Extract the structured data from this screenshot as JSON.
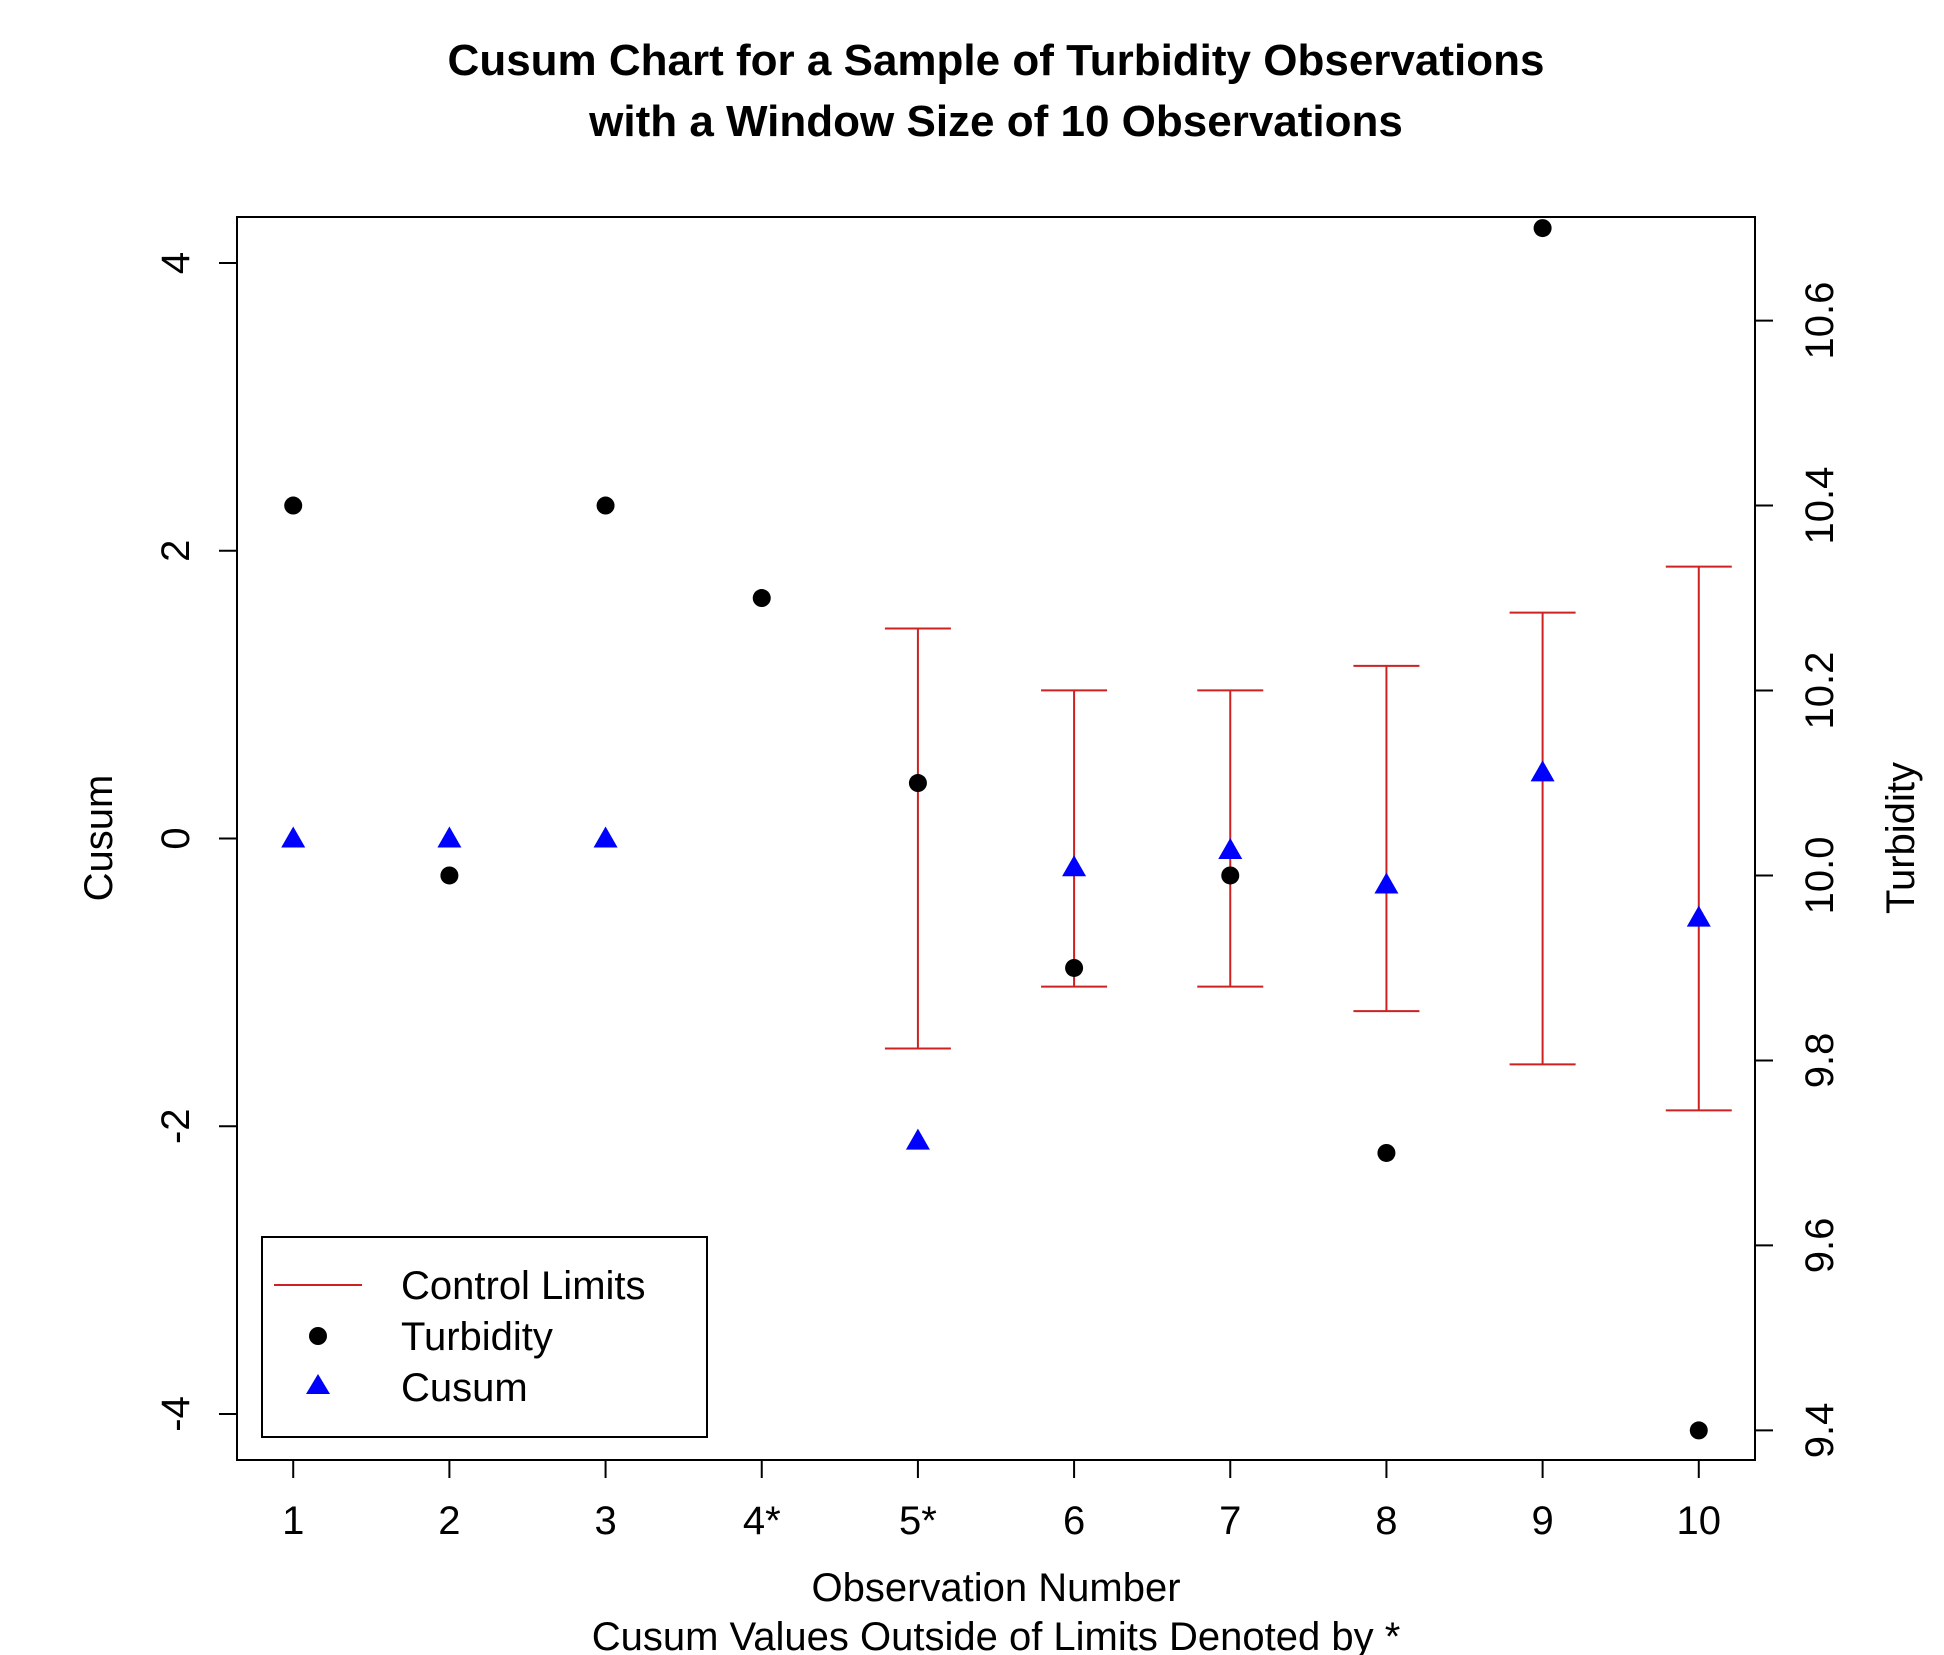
{
  "chart_data": {
    "type": "scatter",
    "title_lines": [
      "Cusum Chart for a Sample of Turbidity Observations",
      "with a Window Size of 10 Observations"
    ],
    "xlabel": "Observation Number",
    "subtitle": "Cusum Values Outside of Limits Denoted by *",
    "ylabel": "Cusum",
    "y2label": "Turbidity",
    "categories": [
      "1",
      "2",
      "3",
      "4*",
      "5*",
      "6",
      "7",
      "8",
      "9",
      "10"
    ],
    "x": [
      1,
      2,
      3,
      4,
      5,
      6,
      7,
      8,
      9,
      10
    ],
    "xlim": [
      0.64,
      10.36
    ],
    "ylim": [
      -4.32,
      4.32
    ],
    "y2lim": [
      9.368,
      10.712
    ],
    "yticks": [
      -4,
      -2,
      0,
      2,
      4
    ],
    "y2ticks": [
      9.4,
      9.6,
      9.8,
      10.0,
      10.2,
      10.4,
      10.6
    ],
    "y2ticklabels": [
      "9.4",
      "9.6",
      "9.8",
      "10.0",
      "10.2",
      "10.4",
      "10.6"
    ],
    "series": [
      {
        "name": "Turbidity",
        "axis": "right",
        "marker": "circle",
        "color": "#000000",
        "values": [
          10.4,
          10.0,
          10.4,
          10.3,
          10.1,
          9.9,
          10.0,
          9.7,
          10.7,
          9.4
        ]
      },
      {
        "name": "Cusum",
        "axis": "left",
        "marker": "triangle",
        "color": "#0000ff",
        "values": [
          0,
          0,
          0,
          null,
          -2.1,
          -0.2,
          -0.08,
          -0.32,
          0.46,
          -0.55
        ]
      }
    ],
    "control_limits": {
      "name": "Control Limits",
      "color": "#cc2222",
      "x": [
        5,
        6,
        7,
        8,
        9,
        10
      ],
      "upper": [
        1.46,
        1.03,
        1.03,
        1.2,
        1.57,
        1.89
      ],
      "lower": [
        -1.46,
        -1.03,
        -1.03,
        -1.2,
        -1.57,
        -1.89
      ]
    },
    "legend": {
      "position": "bottom-left",
      "entries": [
        "Control Limits",
        "Turbidity",
        "Cusum"
      ]
    },
    "grid": false
  }
}
